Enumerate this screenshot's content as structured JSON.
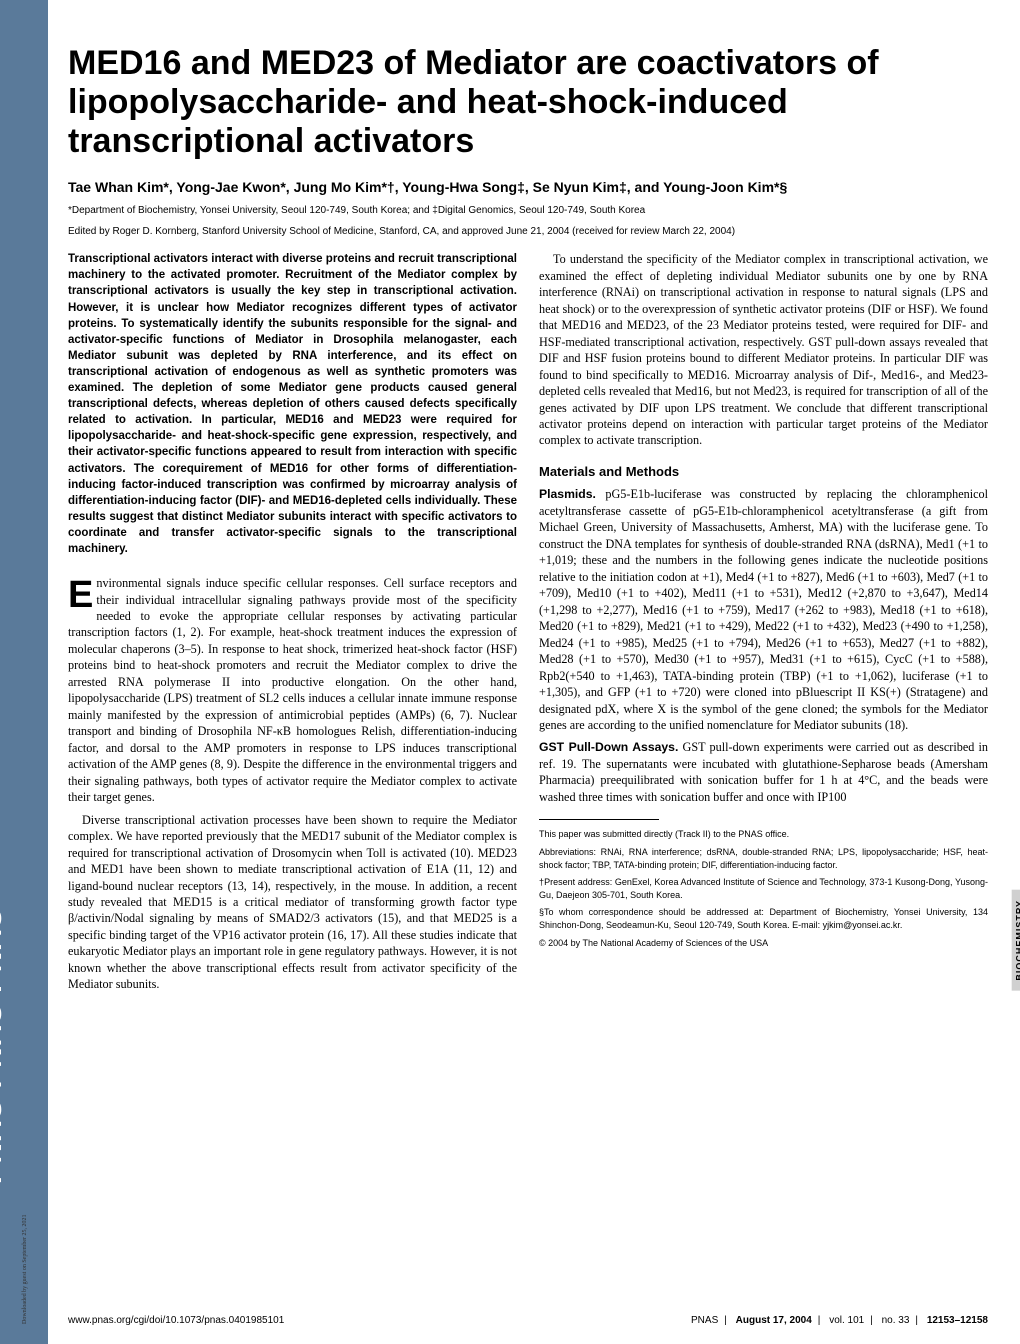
{
  "sidebar": {
    "logo": "PNAS PNAS PNAS",
    "download": "Downloaded by guest on September 25, 2021"
  },
  "title": "MED16 and MED23 of Mediator are coactivators of lipopolysaccharide- and heat-shock-induced transcriptional activators",
  "authors": "Tae Whan Kim*, Yong-Jae Kwon*, Jung Mo Kim*†, Young-Hwa Song‡, Se Nyun Kim‡, and Young-Joon Kim*§",
  "affiliation": "*Department of Biochemistry, Yonsei University, Seoul 120-749, South Korea; and ‡Digital Genomics, Seoul 120-749, South Korea",
  "edited": "Edited by Roger D. Kornberg, Stanford University School of Medicine, Stanford, CA, and approved June 21, 2004 (received for review March 22, 2004)",
  "abstract": "Transcriptional activators interact with diverse proteins and recruit transcriptional machinery to the activated promoter. Recruitment of the Mediator complex by transcriptional activators is usually the key step in transcriptional activation. However, it is unclear how Mediator recognizes different types of activator proteins. To systematically identify the subunits responsible for the signal- and activator-specific functions of Mediator in Drosophila melanogaster, each Mediator subunit was depleted by RNA interference, and its effect on transcriptional activation of endogenous as well as synthetic promoters was examined. The depletion of some Mediator gene products caused general transcriptional defects, whereas depletion of others caused defects specifically related to activation. In particular, MED16 and MED23 were required for lipopolysaccharide- and heat-shock-specific gene expression, respectively, and their activator-specific functions appeared to result from interaction with specific activators. The corequirement of MED16 for other forms of differentiation-inducing factor-induced transcription was confirmed by microarray analysis of differentiation-inducing factor (DIF)- and MED16-depleted cells individually. These results suggest that distinct Mediator subunits interact with specific activators to coordinate and transfer activator-specific signals to the transcriptional machinery.",
  "dropcap": "E",
  "p1": "nvironmental signals induce specific cellular responses. Cell surface receptors and their individual intracellular signaling pathways provide most of the specificity needed to evoke the appropriate cellular responses by activating particular transcription factors (1, 2). For example, heat-shock treatment induces the expression of molecular chaperons (3–5). In response to heat shock, trimerized heat-shock factor (HSF) proteins bind to heat-shock promoters and recruit the Mediator complex to drive the arrested RNA polymerase II into productive elongation. On the other hand, lipopolysaccharide (LPS) treatment of SL2 cells induces a cellular innate immune response mainly manifested by the expression of antimicrobial peptides (AMPs) (6, 7). Nuclear transport and binding of Drosophila NF-κB homologues Relish, differentiation-inducing factor, and dorsal to the AMP promoters in response to LPS induces transcriptional activation of the AMP genes (8, 9). Despite the difference in the environmental triggers and their signaling pathways, both types of activator require the Mediator complex to activate their target genes.",
  "p2": "Diverse transcriptional activation processes have been shown to require the Mediator complex. We have reported previously that the MED17 subunit of the Mediator complex is required for transcriptional activation of Drosomycin when Toll is activated (10). MED23 and MED1 have been shown to mediate transcriptional activation of E1A (11, 12) and ligand-bound nuclear receptors (13, 14), respectively, in the mouse. In addition, a recent study revealed that MED15 is a critical mediator of transforming growth factor type β/activin/Nodal signaling by means of SMAD2/3 activators (15), and that MED25 is a specific binding target of the VP16 activator protein (16, 17). All these studies indicate that eukaryotic Mediator plays an important role in gene regulatory pathways. However, it is not known whether the above transcriptional effects result from activator specificity of the Mediator subunits.",
  "r1": "To understand the specificity of the Mediator complex in transcriptional activation, we examined the effect of depleting individual Mediator subunits one by one by RNA interference (RNAi) on transcriptional activation in response to natural signals (LPS and heat shock) or to the overexpression of synthetic activator proteins (DIF or HSF). We found that MED16 and MED23, of the 23 Mediator proteins tested, were required for DIF- and HSF-mediated transcriptional activation, respectively. GST pull-down assays revealed that DIF and HSF fusion proteins bound to different Mediator proteins. In particular DIF was found to bind specifically to MED16. Microarray analysis of Dif-, Med16-, and Med23-depleted cells revealed that Med16, but not Med23, is required for transcription of all of the genes activated by DIF upon LPS treatment. We conclude that different transcriptional activator proteins depend on interaction with particular target proteins of the Mediator complex to activate transcription.",
  "mm_head": "Materials and Methods",
  "plasmids_lead": "Plasmids.",
  "plasmids": " pG5-E1b-luciferase was constructed by replacing the chloramphenicol acetyltransferase cassette of pG5-E1b-chloramphenicol acetyltransferase (a gift from Michael Green, University of Massachusetts, Amherst, MA) with the luciferase gene. To construct the DNA templates for synthesis of double-stranded RNA (dsRNA), Med1 (+1 to +1,019; these and the numbers in the following genes indicate the nucleotide positions relative to the initiation codon at +1), Med4 (+1 to +827), Med6 (+1 to +603), Med7 (+1 to +709), Med10 (+1 to +402), Med11 (+1 to +531), Med12 (+2,870 to +3,647), Med14 (+1,298 to +2,277), Med16 (+1 to +759), Med17 (+262 to +983), Med18 (+1 to +618), Med20 (+1 to +829), Med21 (+1 to +429), Med22 (+1 to +432), Med23 (+490 to +1,258), Med24 (+1 to +985), Med25 (+1 to +794), Med26 (+1 to +653), Med27 (+1 to +882), Med28 (+1 to +570), Med30 (+1 to +957), Med31 (+1 to +615), CycC (+1 to +588), Rpb2(+540 to +1,463), TATA-binding protein (TBP) (+1 to +1,062), luciferase (+1 to +1,305), and GFP (+1 to +720) were cloned into pBluescript II KS(+) (Stratagene) and designated pdX, where X is the symbol of the gene cloned; the symbols for the Mediator genes are according to the unified nomenclature for Mediator subunits (18).",
  "gst_lead": "GST Pull-Down Assays.",
  "gst": " GST pull-down experiments were carried out as described in ref. 19. The supernatants were incubated with glutathione-Sepharose beads (Amersham Pharmacia) preequilibrated with sonication buffer for 1 h at 4°C, and the beads were washed three times with sonication buffer and once with IP100",
  "fn1": "This paper was submitted directly (Track II) to the PNAS office.",
  "fn2": "Abbreviations: RNAi, RNA interference; dsRNA, double-stranded RNA; LPS, lipopolysaccharide; HSF, heat-shock factor; TBP, TATA-binding protein; DIF, differentiation-inducing factor.",
  "fn3": "†Present address: GenExel, Korea Advanced Institute of Science and Technology, 373-1 Kusong-Dong, Yusong-Gu, Daejeon 305-701, South Korea.",
  "fn4": "§To whom correspondence should be addressed at: Department of Biochemistry, Yonsei University, 134 Shinchon-Dong, Seodeamun-Ku, Seoul 120-749, South Korea. E-mail: yjkim@yonsei.ac.kr.",
  "fn5": "© 2004 by The National Academy of Sciences of the USA",
  "footer": {
    "doi": "www.pnas.org/cgi/doi/10.1073/pnas.0401985101",
    "journal": "PNAS",
    "date": "August 17, 2004",
    "vol": "vol. 101",
    "no": "no. 33",
    "pages": "12153–12158"
  },
  "category": "BIOCHEMISTRY"
}
